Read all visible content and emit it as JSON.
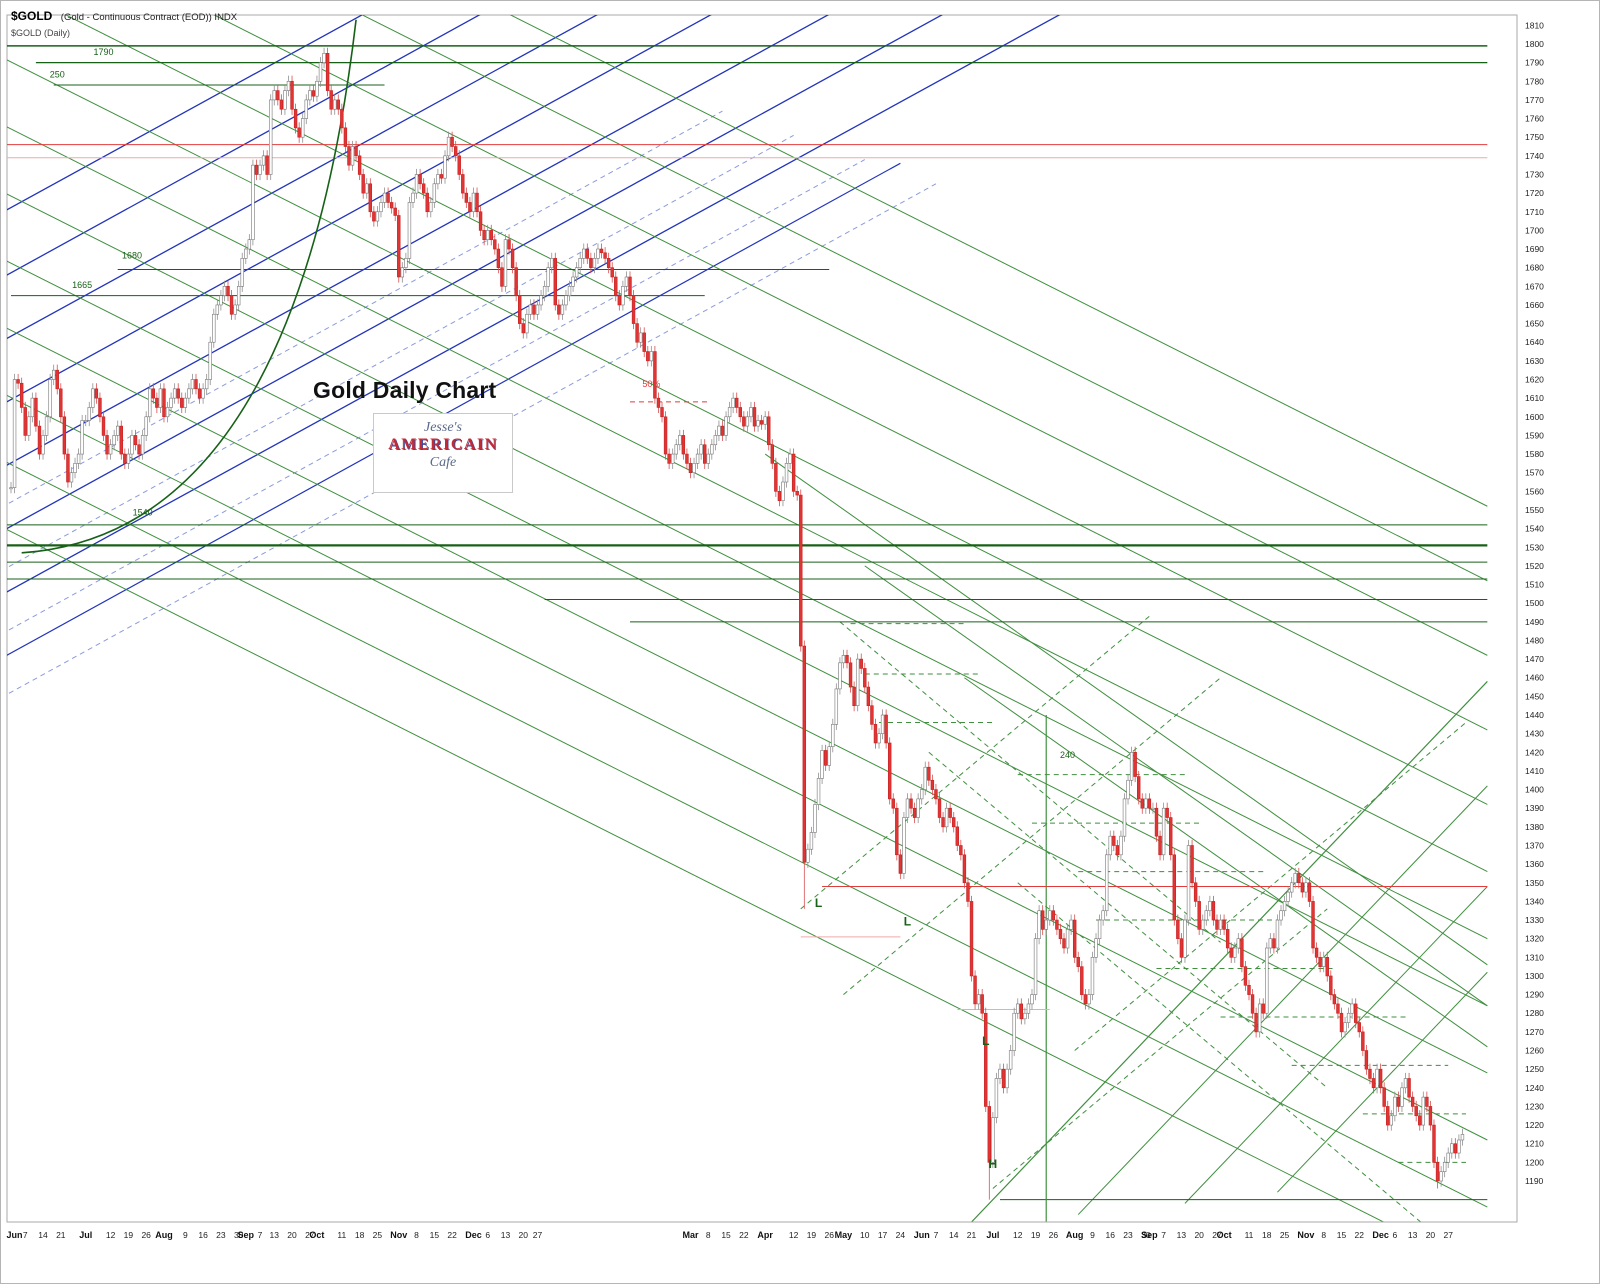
{
  "header": {
    "symbol": "$GOLD",
    "description": "(Gold - Continuous Contract (EOD)) INDX",
    "subtitle": "$GOLD (Daily)"
  },
  "watermark": {
    "line1": "Jesse's",
    "line2": "AMERICAIN",
    "line3": "Cafe"
  },
  "chart_data": {
    "type": "candlestick",
    "title": "Gold Daily Chart",
    "symbol": "$GOLD",
    "timeframe": "Daily",
    "grid": false,
    "ylim": [
      1190,
      1810
    ],
    "ytick_step": 10,
    "colors": {
      "blue": "#2234bb",
      "lblue": "#8b9bdc",
      "green": "#3f8f3f",
      "dgreen": "#176117",
      "red": "#e23b3b",
      "pink": "#eeaaaa",
      "candle_down": "#e33434",
      "candle_up": "#ffffff"
    },
    "x_labels": [
      [
        "Jun",
        1,
        1
      ],
      [
        "7",
        4
      ],
      [
        "14",
        9
      ],
      [
        "21",
        14
      ],
      [
        "Jul",
        21,
        1
      ],
      [
        "12",
        28
      ],
      [
        "19",
        33
      ],
      [
        "26",
        38
      ],
      [
        "Aug",
        43,
        1
      ],
      [
        "9",
        49
      ],
      [
        "16",
        54
      ],
      [
        "23",
        59
      ],
      [
        "30",
        64
      ],
      [
        "Sep",
        66,
        1
      ],
      [
        "7",
        70
      ],
      [
        "13",
        74
      ],
      [
        "20",
        79
      ],
      [
        "27",
        84
      ],
      [
        "Oct",
        86,
        1
      ],
      [
        "11",
        93
      ],
      [
        "18",
        98
      ],
      [
        "25",
        103
      ],
      [
        "Nov",
        109,
        1
      ],
      [
        "8",
        114
      ],
      [
        "15",
        119
      ],
      [
        "22",
        124
      ],
      [
        "Dec",
        130,
        1
      ],
      [
        "6",
        134
      ],
      [
        "13",
        139
      ],
      [
        "20",
        144
      ],
      [
        "27",
        148
      ],
      [
        "Mar",
        191,
        1
      ],
      [
        "8",
        196
      ],
      [
        "15",
        201
      ],
      [
        "22",
        206
      ],
      [
        "Apr",
        212,
        1
      ],
      [
        "12",
        220
      ],
      [
        "19",
        225
      ],
      [
        "26",
        230
      ],
      [
        "May",
        234,
        1
      ],
      [
        "10",
        240
      ],
      [
        "17",
        245
      ],
      [
        "24",
        250
      ],
      [
        "Jun",
        256,
        1
      ],
      [
        "7",
        260
      ],
      [
        "14",
        265
      ],
      [
        "21",
        270
      ],
      [
        "Jul",
        276,
        1
      ],
      [
        "12",
        283
      ],
      [
        "19",
        288
      ],
      [
        "26",
        293
      ],
      [
        "Aug",
        299,
        1
      ],
      [
        "9",
        304
      ],
      [
        "16",
        309
      ],
      [
        "23",
        314
      ],
      [
        "30",
        319
      ],
      [
        "Sep",
        320,
        1
      ],
      [
        "7",
        324
      ],
      [
        "13",
        329
      ],
      [
        "20",
        334
      ],
      [
        "27",
        339
      ],
      [
        "Oct",
        341,
        1
      ],
      [
        "11",
        348
      ],
      [
        "18",
        353
      ],
      [
        "25",
        358
      ],
      [
        "Nov",
        364,
        1
      ],
      [
        "8",
        369
      ],
      [
        "15",
        374
      ],
      [
        "22",
        379
      ],
      [
        "Dec",
        385,
        1
      ],
      [
        "6",
        389
      ],
      [
        "13",
        394
      ],
      [
        "20",
        399
      ],
      [
        "27",
        404
      ]
    ],
    "closes": [
      1562,
      1620,
      1618,
      1605,
      1590,
      1600,
      1610,
      1595,
      1580,
      1590,
      1600,
      1620,
      1625,
      1615,
      1600,
      1580,
      1565,
      1570,
      1575,
      1580,
      1598,
      1598,
      1605,
      1615,
      1610,
      1600,
      1590,
      1580,
      1585,
      1590,
      1595,
      1580,
      1575,
      1580,
      1590,
      1585,
      1580,
      1590,
      1600,
      1615,
      1610,
      1605,
      1615,
      1600,
      1605,
      1610,
      1615,
      1610,
      1605,
      1610,
      1615,
      1620,
      1615,
      1610,
      1615,
      1620,
      1640,
      1655,
      1660,
      1665,
      1670,
      1665,
      1655,
      1660,
      1670,
      1685,
      1690,
      1695,
      1735,
      1730,
      1735,
      1740,
      1730,
      1770,
      1775,
      1770,
      1765,
      1775,
      1780,
      1765,
      1755,
      1750,
      1760,
      1770,
      1775,
      1772,
      1780,
      1790,
      1795,
      1775,
      1765,
      1770,
      1765,
      1755,
      1745,
      1735,
      1745,
      1740,
      1730,
      1720,
      1725,
      1710,
      1705,
      1710,
      1715,
      1720,
      1715,
      1712,
      1708,
      1675,
      1680,
      1685,
      1715,
      1720,
      1730,
      1725,
      1720,
      1710,
      1715,
      1725,
      1730,
      1728,
      1740,
      1750,
      1745,
      1740,
      1730,
      1720,
      1715,
      1710,
      1720,
      1710,
      1700,
      1695,
      1700,
      1695,
      1690,
      1680,
      1670,
      1695,
      1690,
      1680,
      1665,
      1650,
      1645,
      1655,
      1660,
      1655,
      1660,
      1665,
      1670,
      1680,
      1685,
      1660,
      1655,
      1660,
      1665,
      1670,
      1675,
      1680,
      1685,
      1690,
      1685,
      1680,
      1685,
      1690,
      1688,
      1685,
      1680,
      1675,
      1665,
      1660,
      1670,
      1675,
      1665,
      1650,
      1640,
      1645,
      1635,
      1630,
      1635,
      1610,
      1605,
      1600,
      1580,
      1575,
      1580,
      1585,
      1590,
      1580,
      1575,
      1570,
      1575,
      1580,
      1585,
      1575,
      1580,
      1585,
      1590,
      1595,
      1590,
      1600,
      1605,
      1610,
      1605,
      1600,
      1595,
      1600,
      1605,
      1595,
      1598,
      1596,
      1600,
      1585,
      1575,
      1560,
      1555,
      1565,
      1575,
      1580,
      1560,
      1558,
      1477,
      1361,
      1368,
      1377,
      1392,
      1406,
      1421,
      1413,
      1423,
      1435,
      1454,
      1468,
      1472,
      1468,
      1455,
      1445,
      1470,
      1465,
      1455,
      1445,
      1435,
      1425,
      1430,
      1440,
      1425,
      1395,
      1390,
      1365,
      1355,
      1385,
      1395,
      1390,
      1385,
      1395,
      1400,
      1412,
      1405,
      1400,
      1395,
      1385,
      1380,
      1390,
      1385,
      1380,
      1370,
      1365,
      1350,
      1340,
      1300,
      1285,
      1290,
      1280,
      1230,
      1200,
      1224,
      1245,
      1250,
      1240,
      1250,
      1260,
      1280,
      1285,
      1277,
      1280,
      1285,
      1290,
      1320,
      1335,
      1325,
      1330,
      1335,
      1330,
      1325,
      1320,
      1315,
      1325,
      1330,
      1310,
      1305,
      1290,
      1285,
      1290,
      1310,
      1320,
      1330,
      1335,
      1365,
      1375,
      1370,
      1365,
      1375,
      1395,
      1405,
      1420,
      1407,
      1395,
      1390,
      1395,
      1390,
      1390,
      1375,
      1365,
      1390,
      1385,
      1365,
      1330,
      1320,
      1310,
      1330,
      1370,
      1350,
      1340,
      1325,
      1330,
      1335,
      1340,
      1330,
      1325,
      1330,
      1325,
      1315,
      1310,
      1315,
      1320,
      1305,
      1295,
      1290,
      1280,
      1270,
      1285,
      1280,
      1315,
      1320,
      1315,
      1330,
      1335,
      1340,
      1345,
      1350,
      1355,
      1350,
      1345,
      1350,
      1340,
      1315,
      1310,
      1305,
      1310,
      1300,
      1290,
      1285,
      1280,
      1270,
      1275,
      1280,
      1285,
      1275,
      1270,
      1260,
      1250,
      1245,
      1240,
      1250,
      1240,
      1230,
      1220,
      1225,
      1235,
      1230,
      1240,
      1245,
      1235,
      1230,
      1225,
      1220,
      1235,
      1230,
      1220,
      1200,
      1190,
      1195,
      1200,
      1205,
      1210,
      1205,
      1212,
      1215
    ],
    "wick_overrides": {
      "223": {
        "low": 1336
      },
      "275": {
        "low": 1180
      },
      "401": {
        "low": 1186
      }
    },
    "overlays": [
      [
        -5,
        1707,
        100,
        1817,
        "blue",
        1.3
      ],
      [
        -5,
        1672,
        133,
        1817,
        "blue",
        1.3
      ],
      [
        -5,
        1638,
        166,
        1817,
        "blue",
        1.3
      ],
      [
        -5,
        1604,
        198,
        1817,
        "blue",
        1.3
      ],
      [
        -5,
        1570,
        231,
        1817,
        "blue",
        1.3
      ],
      [
        -5,
        1536,
        263,
        1817,
        "blue",
        1.3
      ],
      [
        -5,
        1502,
        296,
        1817,
        "blue",
        1.3
      ],
      [
        -5,
        1468,
        250,
        1736,
        "blue",
        1.2
      ],
      [
        -5,
        1549,
        200,
        1764,
        "lblue",
        1,
        1
      ],
      [
        -5,
        1515,
        220,
        1751,
        "lblue",
        1,
        1
      ],
      [
        -5,
        1481,
        240,
        1738,
        "lblue",
        1,
        1
      ],
      [
        -5,
        1447,
        260,
        1725,
        "lblue",
        1,
        1
      ],
      [
        -10,
        1960,
        415,
        1552,
        "green",
        1
      ],
      [
        -10,
        1920,
        415,
        1512,
        "green",
        1
      ],
      [
        -10,
        1880,
        415,
        1472,
        "green",
        1
      ],
      [
        -10,
        1840,
        415,
        1432,
        "green",
        1
      ],
      [
        -10,
        1800,
        415,
        1392,
        "green",
        1
      ],
      [
        -10,
        1764,
        415,
        1356,
        "green",
        1
      ],
      [
        -10,
        1728,
        415,
        1320,
        "green",
        1
      ],
      [
        -10,
        1692,
        415,
        1284,
        "green",
        1
      ],
      [
        -10,
        1656,
        415,
        1248,
        "green",
        1
      ],
      [
        -10,
        1620,
        415,
        1212,
        "green",
        1
      ],
      [
        -10,
        1584,
        415,
        1176,
        "green",
        1
      ],
      [
        -10,
        1548,
        415,
        1140,
        "green",
        1
      ],
      [
        212,
        1580,
        415,
        1306,
        "green",
        1
      ],
      [
        240,
        1520,
        415,
        1284,
        "green",
        1
      ],
      [
        268,
        1460,
        415,
        1262,
        "green",
        1
      ],
      [
        270,
        1168,
        415,
        1458,
        "green",
        1.2
      ],
      [
        300,
        1172,
        415,
        1402,
        "green",
        1
      ],
      [
        330,
        1178,
        415,
        1348,
        "green",
        1
      ],
      [
        356,
        1184,
        415,
        1302,
        "green",
        1
      ],
      [
        222,
        1336,
        320,
        1493,
        "green",
        1,
        1
      ],
      [
        234,
        1290,
        340,
        1460,
        "green",
        1,
        1
      ],
      [
        276,
        1186,
        370,
        1336,
        "green",
        1,
        1
      ],
      [
        299,
        1260,
        409,
        1436,
        "green",
        1,
        1
      ],
      [
        233,
        1490,
        340,
        1318,
        "green",
        1,
        1
      ],
      [
        258,
        1420,
        370,
        1240,
        "green",
        1,
        1
      ],
      [
        283,
        1350,
        400,
        1162,
        "green",
        1,
        1
      ],
      [
        -10,
        1799,
        415,
        1799,
        "dgreen",
        1.4
      ],
      [
        7,
        1790,
        415,
        1790,
        "dgreen",
        1.2
      ],
      [
        -10,
        1531,
        415,
        1531,
        "dgreen",
        2.2
      ],
      [
        -10,
        1522,
        415,
        1522,
        "dgreen",
        1
      ],
      [
        -10,
        1513,
        415,
        1513,
        "dgreen",
        1
      ],
      [
        150,
        1502,
        415,
        1502,
        "dgreen",
        1
      ],
      [
        174,
        1490,
        415,
        1490,
        "dgreen",
        1
      ],
      [
        30,
        1679,
        230,
        1679,
        "dgreen",
        1
      ],
      [
        0,
        1665,
        195,
        1665,
        "dgreen",
        1
      ],
      [
        12,
        1778,
        105,
        1778,
        "dgreen",
        1
      ],
      [
        -10,
        1542,
        415,
        1542,
        "dgreen",
        1
      ],
      [
        278,
        1180,
        415,
        1180,
        "dgreen",
        1
      ],
      [
        291,
        1165,
        291,
        1440,
        "green",
        1.2
      ],
      [
        -10,
        1746,
        415,
        1746,
        "red",
        1
      ],
      [
        -10,
        1739,
        415,
        1739,
        "pink",
        1
      ],
      [
        228,
        1348,
        415,
        1348,
        "red",
        1
      ],
      [
        174,
        1608,
        196,
        1608,
        "red",
        1,
        1
      ],
      [
        222,
        1321,
        250,
        1321,
        "pink",
        1
      ],
      [
        266,
        1282,
        292,
        1282,
        "pink",
        1
      ],
      [
        236,
        1489,
        268,
        1489,
        "green",
        1,
        1
      ],
      [
        240,
        1462,
        272,
        1462,
        "green",
        1,
        1
      ],
      [
        244,
        1436,
        276,
        1436,
        "green",
        1,
        1
      ],
      [
        283,
        1408,
        330,
        1408,
        "green",
        1,
        1
      ],
      [
        287,
        1382,
        334,
        1382,
        "green",
        1,
        1
      ],
      [
        300,
        1356,
        352,
        1356,
        "green",
        1,
        1
      ],
      [
        305,
        1330,
        356,
        1330,
        "green",
        1,
        1
      ],
      [
        322,
        1304,
        372,
        1304,
        "green",
        1,
        1
      ],
      [
        340,
        1278,
        392,
        1278,
        "green",
        1,
        1
      ],
      [
        360,
        1252,
        404,
        1252,
        "green",
        1,
        1
      ],
      [
        380,
        1226,
        409,
        1226,
        "green",
        1,
        1
      ],
      [
        390,
        1200,
        409,
        1200,
        "green",
        1,
        1
      ]
    ],
    "curves": [
      {
        "c": "dgreen",
        "w": 1.6,
        "pts": [
          [
            3,
            1527
          ],
          [
            80,
            1537
          ],
          [
            97,
            1813
          ]
        ]
      }
    ],
    "annotations": [
      [
        "1790",
        26,
        1794,
        "dgreen"
      ],
      [
        "250",
        13,
        1782,
        "dgreen"
      ],
      [
        "1680",
        34,
        1685,
        "dgreen"
      ],
      [
        "1665",
        20,
        1669,
        "dgreen"
      ],
      [
        "1540",
        37,
        1547,
        "dgreen"
      ],
      [
        "50%",
        180,
        1616,
        "red"
      ],
      [
        "240",
        297,
        1417,
        "dgreen"
      ],
      [
        "L",
        227,
        1337,
        "dgreen",
        1
      ],
      [
        "L",
        252,
        1327,
        "dgreen",
        1
      ],
      [
        "L",
        274,
        1263,
        "dgreen",
        1
      ],
      [
        "H",
        276,
        1197,
        "dgreen",
        1
      ]
    ]
  }
}
